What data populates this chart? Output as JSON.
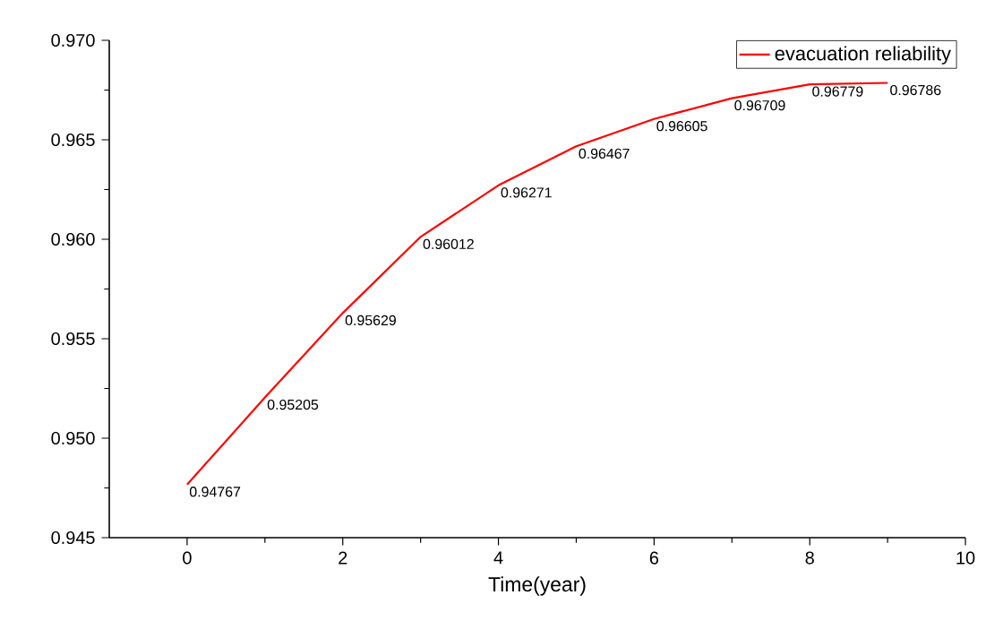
{
  "chart_data": {
    "type": "line",
    "xlabel": "Time(year)",
    "x": [
      0,
      1,
      2,
      3,
      4,
      5,
      6,
      7,
      8,
      9
    ],
    "series": [
      {
        "name": "evacuation reliability",
        "color": "#ff0000",
        "values": [
          0.94767,
          0.95205,
          0.95629,
          0.96012,
          0.96271,
          0.96467,
          0.96605,
          0.96709,
          0.96779,
          0.96786
        ]
      }
    ],
    "xlim": [
      -1,
      10
    ],
    "xticks": [
      0,
      2,
      4,
      6,
      8,
      10
    ],
    "ylim": [
      0.945,
      0.97
    ],
    "yticks": [
      0.945,
      {
        "value": 0.95,
        "label": "0.950"
      },
      0.955,
      {
        "value": 0.96,
        "label": "0.960"
      },
      0.965,
      {
        "value": 0.97,
        "label": "0.970"
      }
    ],
    "data_labels": true,
    "legend": "top right",
    "grid": false,
    "marker": "none",
    "line_style": "solid"
  }
}
